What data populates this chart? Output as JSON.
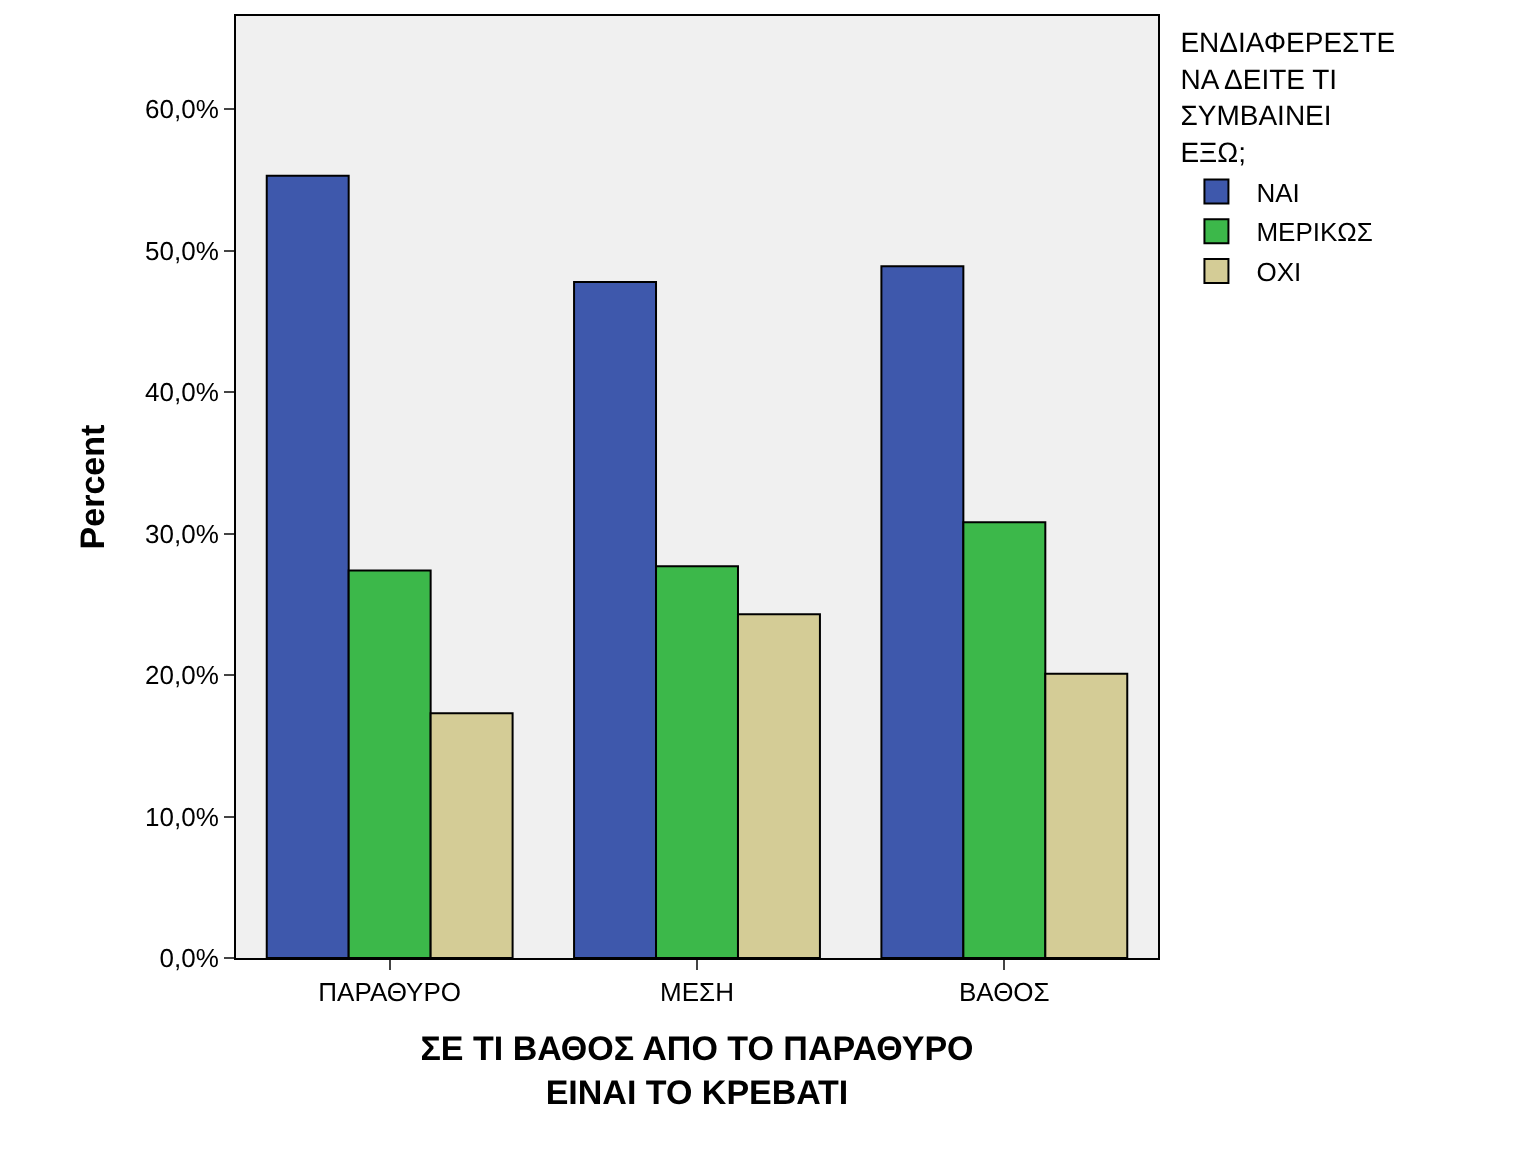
{
  "chart_data": {
    "type": "bar",
    "xlabel": "ΣΕ ΤΙ ΒΑΘΟΣ ΑΠΟ ΤΟ ΠΑΡΑΘΥΡΟ\nΕΙΝΑΙ ΤΟ ΚΡΕΒΑΤΙ",
    "ylabel": "Percent",
    "legend_title": "ΕΝΔΙΑΦΕΡΕΣΤΕ\nΝΑ ΔΕΙΤΕ ΤΙ\nΣΥΜΒΑΙΝΕΙ\nΕΞΩ;",
    "categories": [
      "ΠΑΡΑΘΥΡΟ",
      "ΜΕΣΗ",
      "ΒΑΘΟΣ"
    ],
    "series": [
      {
        "name": "ΝΑΙ",
        "color": "#3e58ac",
        "values": [
          55.3,
          47.8,
          48.9
        ]
      },
      {
        "name": "ΜΕΡΙΚΩΣ",
        "color": "#3cb84a",
        "values": [
          27.4,
          27.7,
          30.8
        ]
      },
      {
        "name": "ΟΧΙ",
        "color": "#d4cc96",
        "values": [
          17.3,
          24.3,
          20.1
        ]
      }
    ],
    "ylim": [
      0,
      66.6
    ],
    "yticks": [
      {
        "value": 0,
        "label": "0,0%"
      },
      {
        "value": 10,
        "label": "10,0%"
      },
      {
        "value": 20,
        "label": "20,0%"
      },
      {
        "value": 30,
        "label": "30,0%"
      },
      {
        "value": 40,
        "label": "40,0%"
      },
      {
        "value": 50,
        "label": "50,0%"
      },
      {
        "value": 60,
        "label": "60,0%"
      }
    ],
    "grid": false,
    "legend": "top right"
  }
}
